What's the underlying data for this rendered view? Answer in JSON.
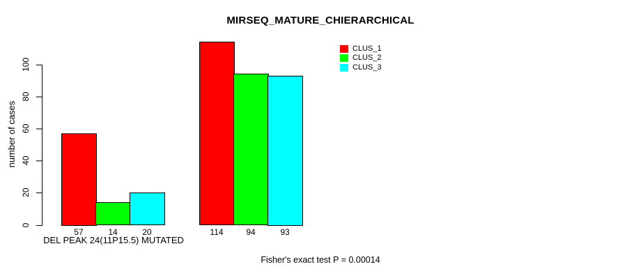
{
  "title": "MIRSEQ_MATURE_CHIERARCHICAL",
  "footer": "Fisher's exact test P = 0.00014",
  "chart_data": {
    "type": "bar",
    "title": "MIRSEQ_MATURE_CHIERARCHICAL",
    "ylabel": "number of cases",
    "xlabel": "",
    "group_label": "DEL PEAK 24(11P15.5) MUTATED",
    "categories": [
      "DEL PEAK 24(11P15.5) MUTATED",
      ""
    ],
    "series": [
      {
        "name": "CLUS_1",
        "color": "#ff0000",
        "values": [
          57,
          114
        ]
      },
      {
        "name": "CLUS_2",
        "color": "#00ff00",
        "values": [
          14,
          94
        ]
      },
      {
        "name": "CLUS_3",
        "color": "#00ffff",
        "values": [
          20,
          93
        ]
      }
    ],
    "ylim": [
      0,
      100
    ],
    "yticks": [
      0,
      20,
      40,
      60,
      80,
      100
    ],
    "grid": false,
    "legend_position": "top-right",
    "annotation": "Fisher's exact test P = 0.00014"
  }
}
